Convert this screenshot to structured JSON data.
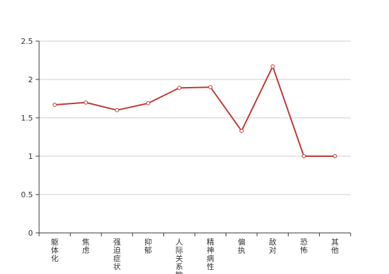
{
  "chart_data": {
    "type": "line",
    "title": "",
    "xlabel": "",
    "ylabel": "",
    "categories": [
      "躯体化",
      "焦虑",
      "强迫症状",
      "抑郁",
      "人际关系敏感",
      "精神病性",
      "偏执",
      "敌对",
      "恐怖",
      "其他"
    ],
    "series": [
      {
        "values": [
          1.67,
          1.7,
          1.6,
          1.69,
          1.89,
          1.9,
          1.33,
          2.17,
          1.0,
          1.0
        ]
      }
    ],
    "ylim": [
      0,
      2.5
    ],
    "yticks": [
      "0",
      "0.5",
      "1",
      "1.5",
      "2",
      "2.5"
    ],
    "grid": true,
    "legend": "none",
    "colors": {
      "line": "#c23531",
      "grid": "#cccccc",
      "axis": "#333333",
      "marker_fill": "#ffffff"
    }
  }
}
